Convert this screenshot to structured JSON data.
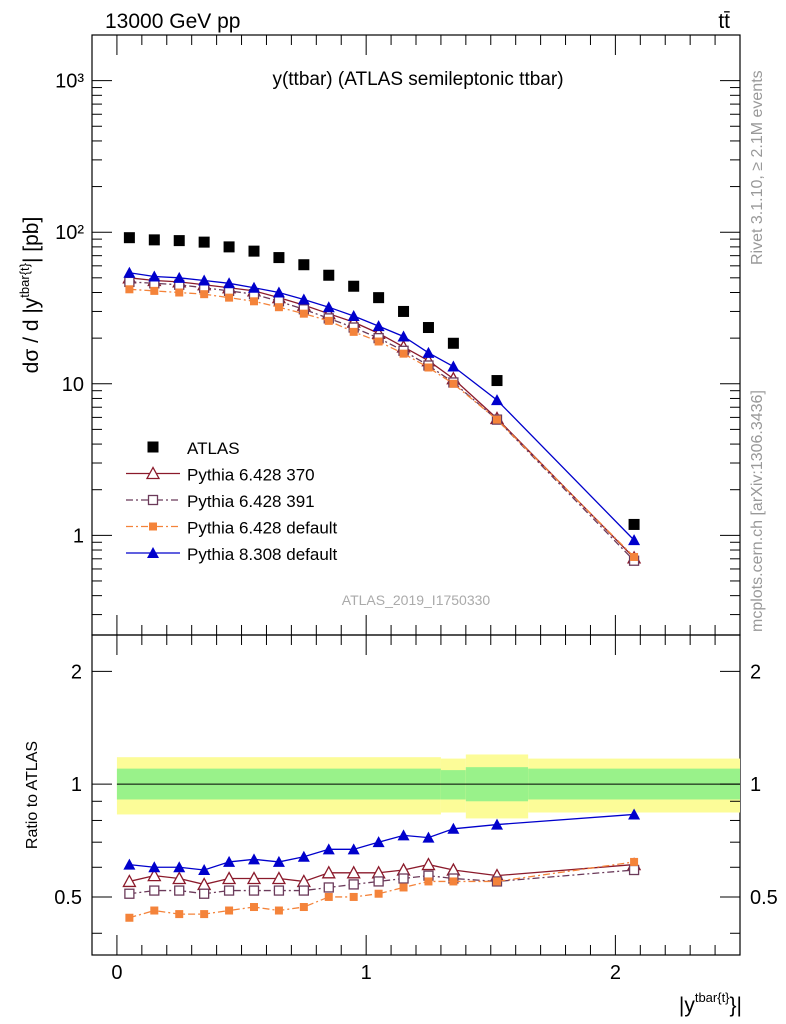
{
  "header": {
    "left": "13000 GeV pp",
    "right": "tt̄",
    "side_top": "Rivet 3.1.10, ≥ 2.1M events",
    "side_bottom": "mcplots.cern.ch [arXiv:1306.3436]"
  },
  "chart_data": {
    "type": "scatter",
    "title": "y(ttbar) (ATLAS semileptonic ttbar)",
    "watermark": "ATLAS_2019_I1750330",
    "xlabel": "|y^{tbar{t}}|",
    "ylabel_main": "dσ / d |y^{tbar{t}}| [pb]",
    "ylabel_ratio": "Ratio to ATLAS",
    "x_range": [
      -0.1,
      2.5
    ],
    "y_range_main": [
      0.22,
      2000
    ],
    "y_scale_main": "log",
    "y_range_ratio": [
      0.35,
      2.5
    ],
    "y_scale_ratio": "log",
    "main_y_ticks": [
      {
        "v": 1,
        "label": "1"
      },
      {
        "v": 10,
        "label": "10"
      },
      {
        "v": 100,
        "label": "10²"
      },
      {
        "v": 1000,
        "label": "10³"
      }
    ],
    "ratio_y_ticks": [
      {
        "v": 0.5,
        "label": "0.5"
      },
      {
        "v": 1,
        "label": "1"
      },
      {
        "v": 2,
        "label": "2"
      }
    ],
    "x_ticks": [
      {
        "v": 0,
        "label": "0"
      },
      {
        "v": 1,
        "label": "1"
      },
      {
        "v": 2,
        "label": "2"
      }
    ],
    "legend_position": "bottom-left",
    "x": [
      0.05,
      0.15,
      0.25,
      0.35,
      0.45,
      0.55,
      0.65,
      0.75,
      0.85,
      0.95,
      1.05,
      1.15,
      1.25,
      1.35,
      1.525,
      2.075
    ],
    "data_series": {
      "name": "ATLAS",
      "color": "#000000",
      "values": [
        92,
        89,
        88,
        86,
        80,
        75,
        68,
        61,
        52,
        44,
        37,
        30,
        23.5,
        18.5,
        10.5,
        1.18
      ]
    },
    "series": [
      {
        "name": "Pythia 6.428 370",
        "color": "#8b1a2b",
        "marker": "triangle-open",
        "dash": "",
        "values": [
          50,
          48,
          47,
          45,
          43,
          41,
          37,
          33,
          29,
          25.5,
          21.5,
          17.5,
          14.2,
          10.8,
          5.9,
          0.71
        ]
      },
      {
        "name": "Pythia 6.428 391",
        "color": "#6b3a5a",
        "marker": "square-open",
        "dash": "7,3,2,3",
        "values": [
          47,
          46,
          45,
          43,
          41,
          39,
          35,
          31,
          27,
          23.5,
          20,
          16.5,
          13.2,
          10.2,
          5.8,
          0.68
        ]
      },
      {
        "name": "Pythia 6.428 default",
        "color": "#f4833a",
        "marker": "square-filled",
        "dash": "7,3,2,3",
        "values": [
          42,
          41,
          40,
          39,
          37,
          35,
          32,
          29,
          26,
          22,
          19,
          15.8,
          12.8,
          10,
          5.8,
          0.72
        ]
      },
      {
        "name": "Pythia 8.308 default",
        "color": "#0000cc",
        "marker": "triangle-filled",
        "dash": "",
        "values": [
          54,
          51,
          50,
          48,
          46,
          43,
          40,
          36,
          32,
          28,
          24,
          20.5,
          16,
          13,
          7.8,
          0.93
        ]
      }
    ],
    "ratios": [
      [
        0.55,
        0.57,
        0.56,
        0.54,
        0.56,
        0.56,
        0.56,
        0.55,
        0.58,
        0.58,
        0.58,
        0.59,
        0.61,
        0.59,
        0.57,
        0.61
      ],
      [
        0.51,
        0.52,
        0.52,
        0.51,
        0.52,
        0.52,
        0.52,
        0.52,
        0.53,
        0.54,
        0.55,
        0.56,
        0.57,
        0.56,
        0.55,
        0.59
      ],
      [
        0.44,
        0.46,
        0.45,
        0.45,
        0.46,
        0.47,
        0.46,
        0.47,
        0.5,
        0.5,
        0.51,
        0.53,
        0.55,
        0.55,
        0.55,
        0.62
      ],
      [
        0.61,
        0.6,
        0.6,
        0.59,
        0.62,
        0.63,
        0.62,
        0.64,
        0.67,
        0.67,
        0.7,
        0.73,
        0.72,
        0.76,
        0.78,
        0.83
      ]
    ],
    "band_edges": [
      0,
      1.3,
      1.4,
      1.65,
      2.5
    ],
    "band_green": [
      [
        0.91,
        1.1
      ],
      [
        0.91,
        1.09
      ],
      [
        0.9,
        1.11
      ],
      [
        0.91,
        1.1
      ]
    ],
    "band_yellow": [
      [
        0.83,
        1.18
      ],
      [
        0.84,
        1.17
      ],
      [
        0.81,
        1.2
      ],
      [
        0.84,
        1.17
      ]
    ],
    "band_colors": {
      "green": "#99f28a",
      "yellow": "#fcfc98"
    }
  }
}
